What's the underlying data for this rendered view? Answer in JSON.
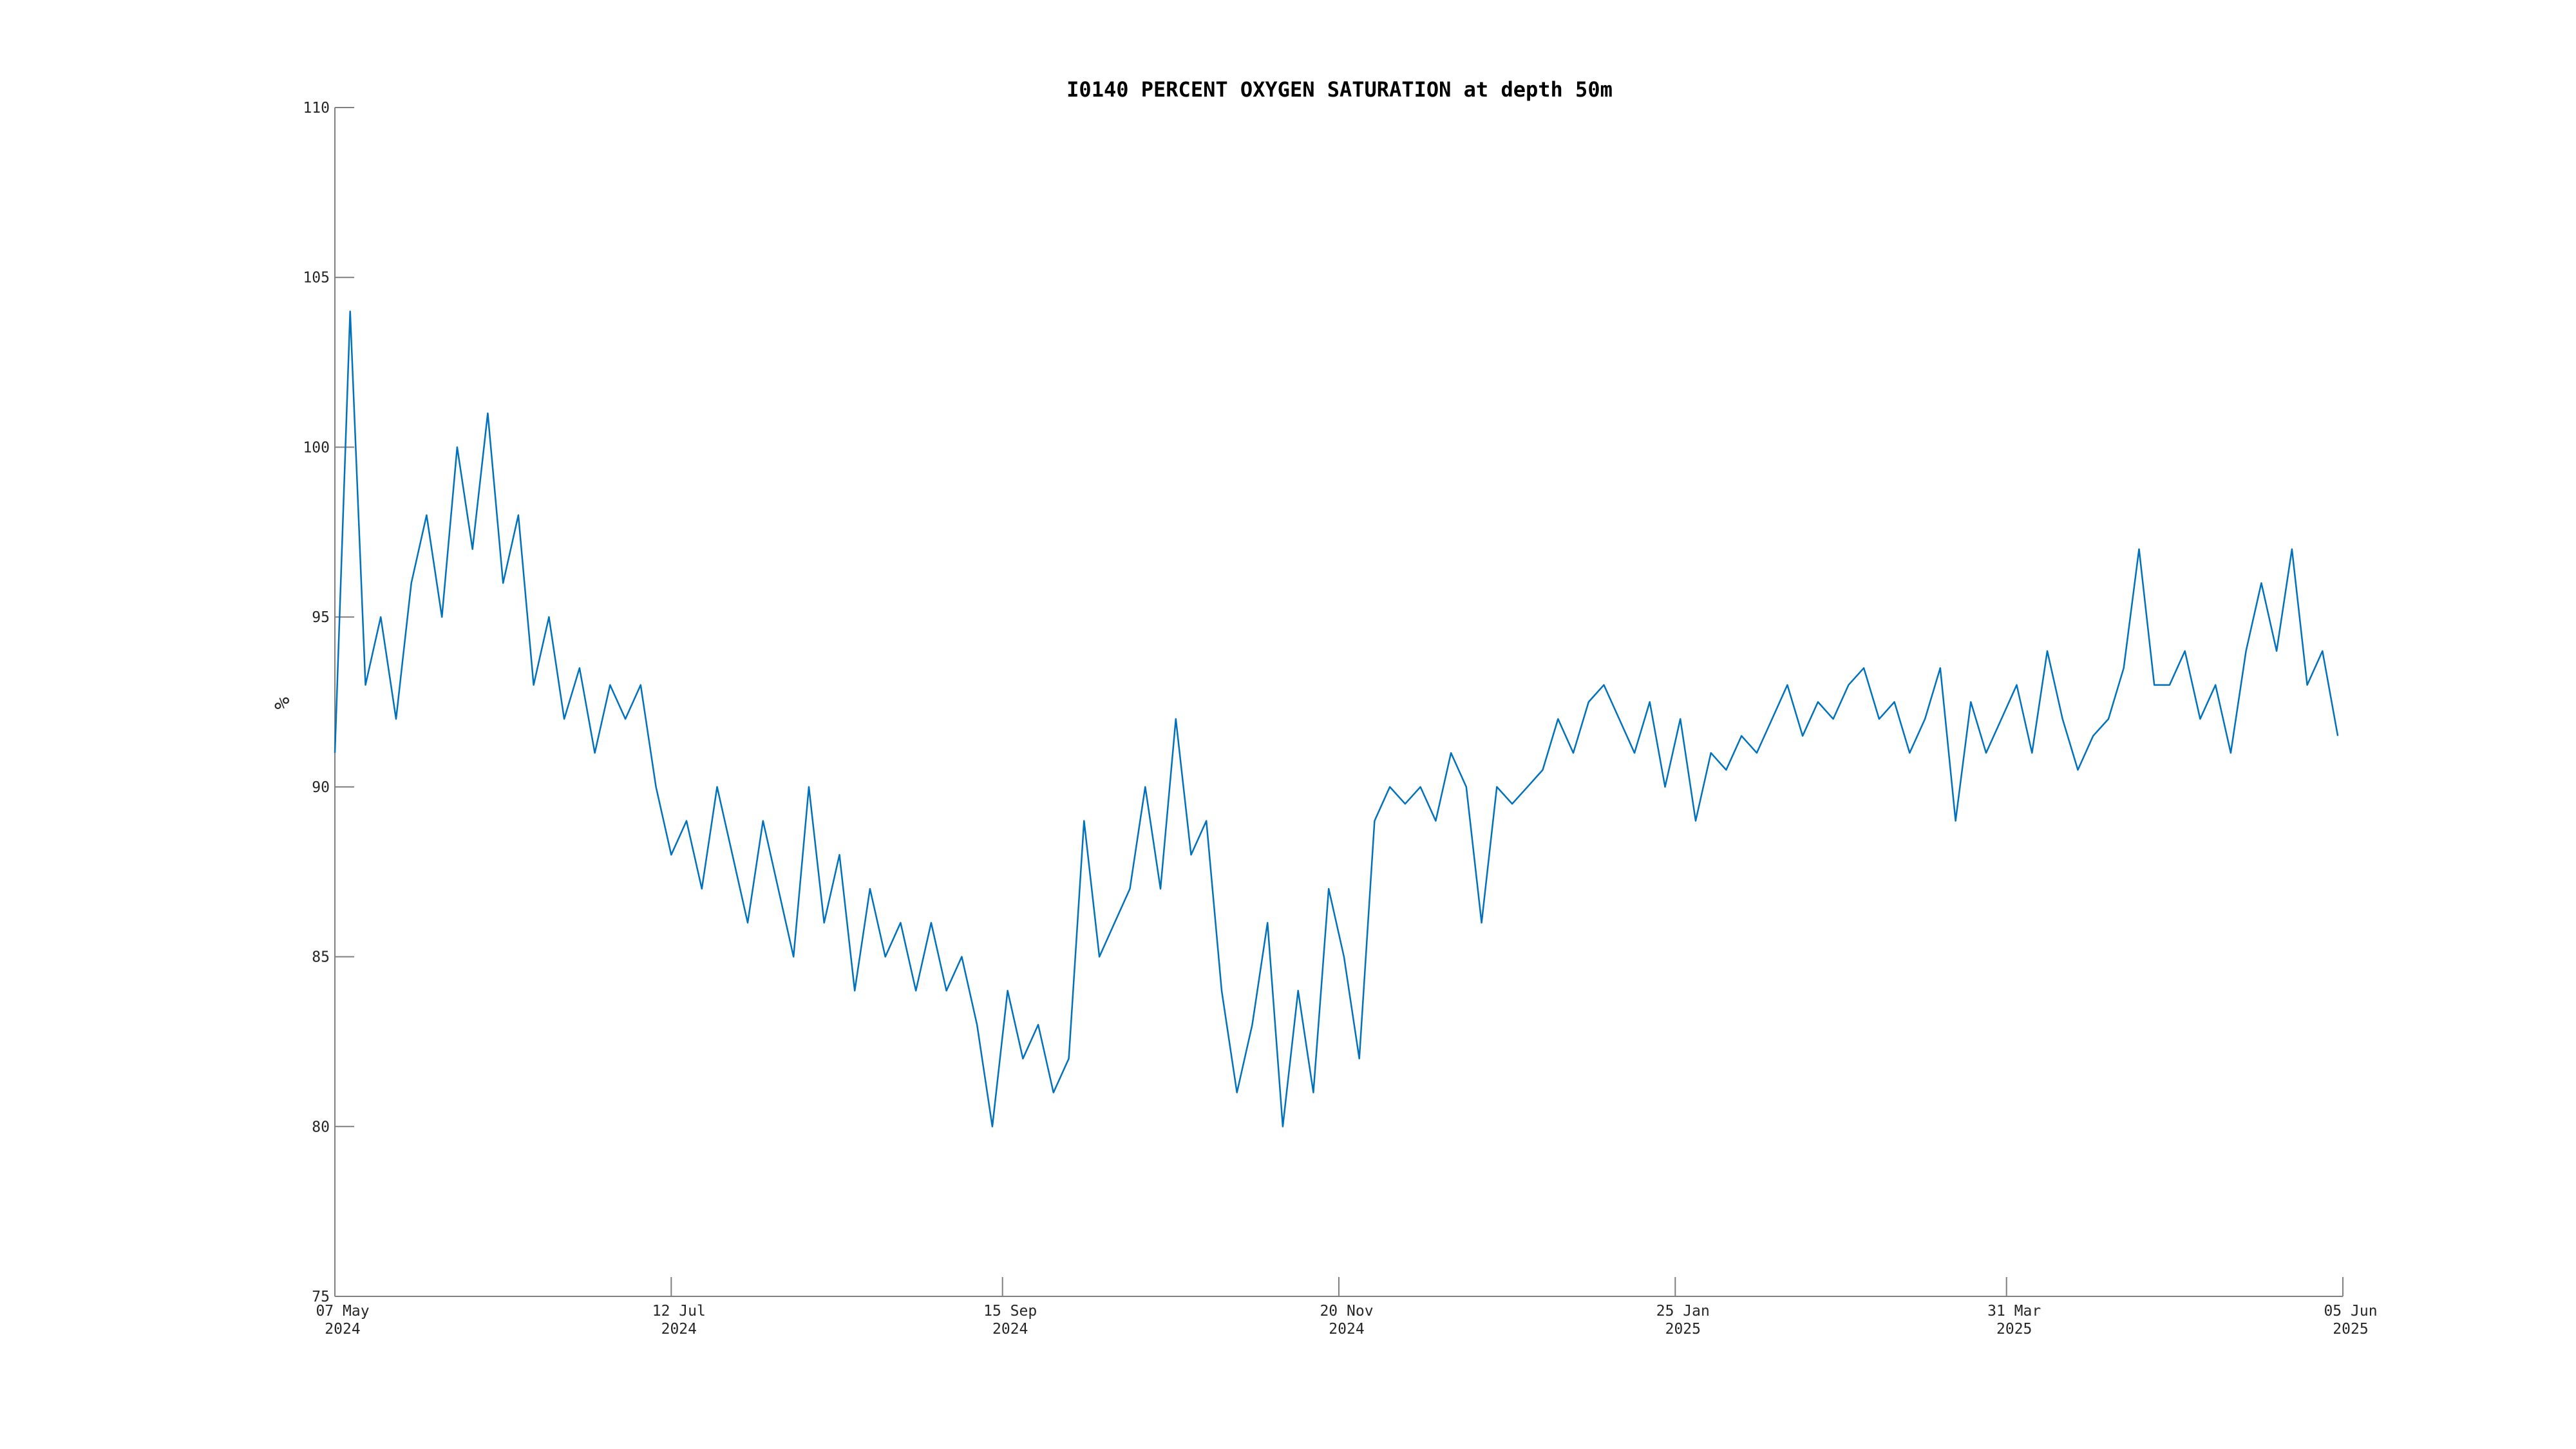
{
  "chart_data": {
    "type": "line",
    "title": "I0140 PERCENT OXYGEN SATURATION at depth 50m",
    "ylabel": "%",
    "x": [
      "2024-05-07",
      "2024-05-10",
      "2024-05-13",
      "2024-05-16",
      "2024-05-19",
      "2024-05-22",
      "2024-05-25",
      "2024-05-28",
      "2024-05-31",
      "2024-06-03",
      "2024-06-06",
      "2024-06-09",
      "2024-06-12",
      "2024-06-15",
      "2024-06-18",
      "2024-06-21",
      "2024-06-24",
      "2024-06-27",
      "2024-06-30",
      "2024-07-03",
      "2024-07-06",
      "2024-07-09",
      "2024-07-12",
      "2024-07-15",
      "2024-07-18",
      "2024-07-21",
      "2024-07-24",
      "2024-07-27",
      "2024-07-30",
      "2024-08-02",
      "2024-08-05",
      "2024-08-08",
      "2024-08-11",
      "2024-08-14",
      "2024-08-17",
      "2024-08-20",
      "2024-08-23",
      "2024-08-26",
      "2024-08-29",
      "2024-09-01",
      "2024-09-04",
      "2024-09-07",
      "2024-09-10",
      "2024-09-13",
      "2024-09-16",
      "2024-09-19",
      "2024-09-22",
      "2024-09-25",
      "2024-09-28",
      "2024-10-01",
      "2024-10-04",
      "2024-10-07",
      "2024-10-10",
      "2024-10-13",
      "2024-10-16",
      "2024-10-19",
      "2024-10-22",
      "2024-10-25",
      "2024-10-28",
      "2024-10-31",
      "2024-11-03",
      "2024-11-06",
      "2024-11-09",
      "2024-11-12",
      "2024-11-15",
      "2024-11-18",
      "2024-11-21",
      "2024-11-24",
      "2024-11-27",
      "2024-11-30",
      "2024-12-03",
      "2024-12-06",
      "2024-12-09",
      "2024-12-12",
      "2024-12-15",
      "2024-12-18",
      "2024-12-21",
      "2024-12-24",
      "2024-12-27",
      "2024-12-30",
      "2025-01-02",
      "2025-01-05",
      "2025-01-08",
      "2025-01-11",
      "2025-01-14",
      "2025-01-17",
      "2025-01-20",
      "2025-01-23",
      "2025-01-26",
      "2025-01-29",
      "2025-02-01",
      "2025-02-04",
      "2025-02-07",
      "2025-02-10",
      "2025-02-13",
      "2025-02-16",
      "2025-02-19",
      "2025-02-22",
      "2025-02-25",
      "2025-02-28",
      "2025-03-03",
      "2025-03-06",
      "2025-03-09",
      "2025-03-12",
      "2025-03-15",
      "2025-03-18",
      "2025-03-21",
      "2025-03-24",
      "2025-03-27",
      "2025-03-30",
      "2025-04-02",
      "2025-04-05",
      "2025-04-08",
      "2025-04-11",
      "2025-04-14",
      "2025-04-17",
      "2025-04-20",
      "2025-04-23",
      "2025-04-26",
      "2025-04-29",
      "2025-05-02",
      "2025-05-05",
      "2025-05-08",
      "2025-05-11",
      "2025-05-14",
      "2025-05-17",
      "2025-05-20",
      "2025-05-23",
      "2025-05-26",
      "2025-05-29",
      "2025-06-01",
      "2025-06-04"
    ],
    "series": [
      {
        "name": "I0140",
        "color": "#0072bd",
        "values": [
          91,
          104,
          93,
          95,
          92,
          96,
          98,
          95,
          100,
          97,
          101,
          96,
          98,
          93,
          95,
          92,
          93.5,
          91,
          93,
          92,
          93,
          90,
          88,
          89,
          87,
          90,
          88,
          86,
          89,
          87,
          85,
          90,
          86,
          88,
          84,
          87,
          85,
          86,
          84,
          86,
          84,
          85,
          83,
          80,
          84,
          82,
          83,
          81,
          82,
          89,
          85,
          86,
          87,
          90,
          87,
          92,
          88,
          89,
          84,
          81,
          83,
          86,
          80,
          84,
          81,
          87,
          85,
          82,
          89,
          90,
          89.5,
          90,
          89,
          91,
          90,
          86,
          90,
          89.5,
          90,
          90.5,
          92,
          91,
          92.5,
          93,
          92,
          91,
          92.5,
          90,
          92,
          89,
          91,
          90.5,
          91.5,
          91,
          92,
          93,
          91.5,
          92.5,
          92,
          93,
          93.5,
          92,
          92.5,
          91,
          92,
          93.5,
          89,
          92.5,
          91,
          92,
          93,
          91,
          94,
          92,
          90.5,
          91.5,
          92,
          93.5,
          97,
          93,
          93,
          94,
          92,
          93,
          91,
          94,
          96,
          94,
          97,
          93,
          94,
          91.5
        ]
      }
    ],
    "xlim": [
      "2024-05-07",
      "2025-06-05"
    ],
    "xticks": [
      {
        "value": "2024-05-07",
        "label": "07 May\n2024"
      },
      {
        "value": "2024-07-12",
        "label": "12 Jul\n2024"
      },
      {
        "value": "2024-09-15",
        "label": "15 Sep\n2024"
      },
      {
        "value": "2024-11-20",
        "label": "20 Nov\n2024"
      },
      {
        "value": "2025-01-25",
        "label": "25 Jan\n2025"
      },
      {
        "value": "2025-03-31",
        "label": "31 Mar\n2025"
      },
      {
        "value": "2025-06-05",
        "label": "05 Jun\n2025"
      }
    ],
    "ylim": [
      75,
      110
    ],
    "yticks": [
      75,
      80,
      85,
      90,
      95,
      100,
      105,
      110
    ]
  }
}
